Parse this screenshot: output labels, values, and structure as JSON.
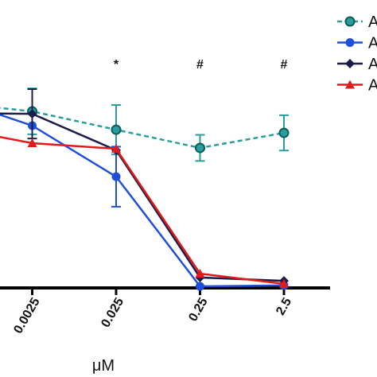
{
  "chart_data": {
    "type": "line",
    "x_label": "μM",
    "categories": [
      null,
      "0.0025",
      "0.025",
      "0.25",
      "2.5"
    ],
    "ylim": [
      0,
      100
    ],
    "series": [
      {
        "name": "A",
        "color": "#2a9d9d",
        "marker": "circle",
        "dashed": true,
        "values": [
          105,
          100,
          89.6,
          79.3,
          87.8
        ],
        "errors": [
          null,
          13,
          14,
          7.4,
          10
        ]
      },
      {
        "name": "A",
        "color": "#1f4fd8",
        "marker": "circle",
        "dashed": false,
        "values": [
          108,
          91.9,
          63,
          0.9,
          1.4
        ],
        "errors": [
          null,
          null,
          17,
          null,
          null
        ]
      },
      {
        "name": "A",
        "color": "#1c1c4a",
        "marker": "diamond",
        "dashed": false,
        "values": [
          99,
          98.6,
          78,
          5.9,
          4
        ],
        "errors": [
          null,
          14,
          null,
          null,
          null
        ]
      },
      {
        "name": "A",
        "color": "#e01b1b",
        "marker": "triangle",
        "dashed": false,
        "values": [
          91,
          82,
          78.8,
          8.1,
          2.3
        ],
        "errors": [
          null,
          null,
          null,
          null,
          null
        ]
      }
    ],
    "annotations": [
      {
        "category": 2,
        "text": "*"
      },
      {
        "category": 3,
        "text": "#"
      },
      {
        "category": 4,
        "text": "#"
      }
    ]
  }
}
